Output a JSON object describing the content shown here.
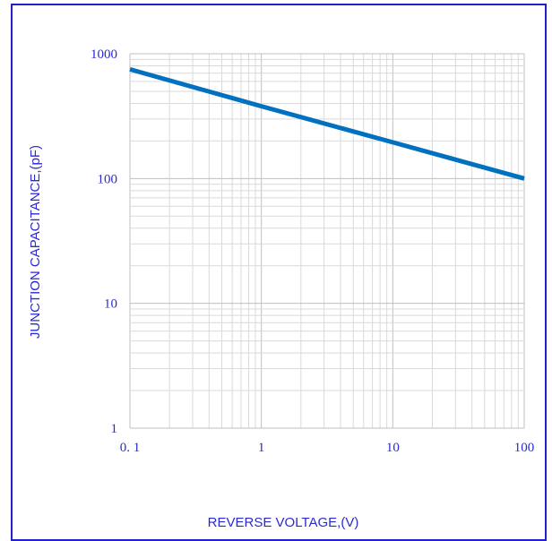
{
  "chart_data": {
    "type": "line",
    "title": "",
    "xlabel": "REVERSE VOLTAGE,(V)",
    "ylabel": "JUNCTION CAPACITANCE,(pF)",
    "x_scale": "log",
    "y_scale": "log",
    "xlim": [
      0.1,
      100
    ],
    "ylim": [
      1,
      1000
    ],
    "x_ticks": [
      "0. 1",
      "1",
      "10",
      "100"
    ],
    "y_ticks": [
      "1",
      "10",
      "100",
      "1000"
    ],
    "grid": true,
    "series": [
      {
        "x": [
          0.1,
          1,
          10,
          100
        ],
        "y": [
          750,
          380,
          195,
          100
        ],
        "color": "#0070c0"
      }
    ]
  },
  "colors": {
    "frame": "#2020c8",
    "text": "#2a2ad0",
    "grid": "#d9d9d9",
    "line": "#0070c0"
  }
}
